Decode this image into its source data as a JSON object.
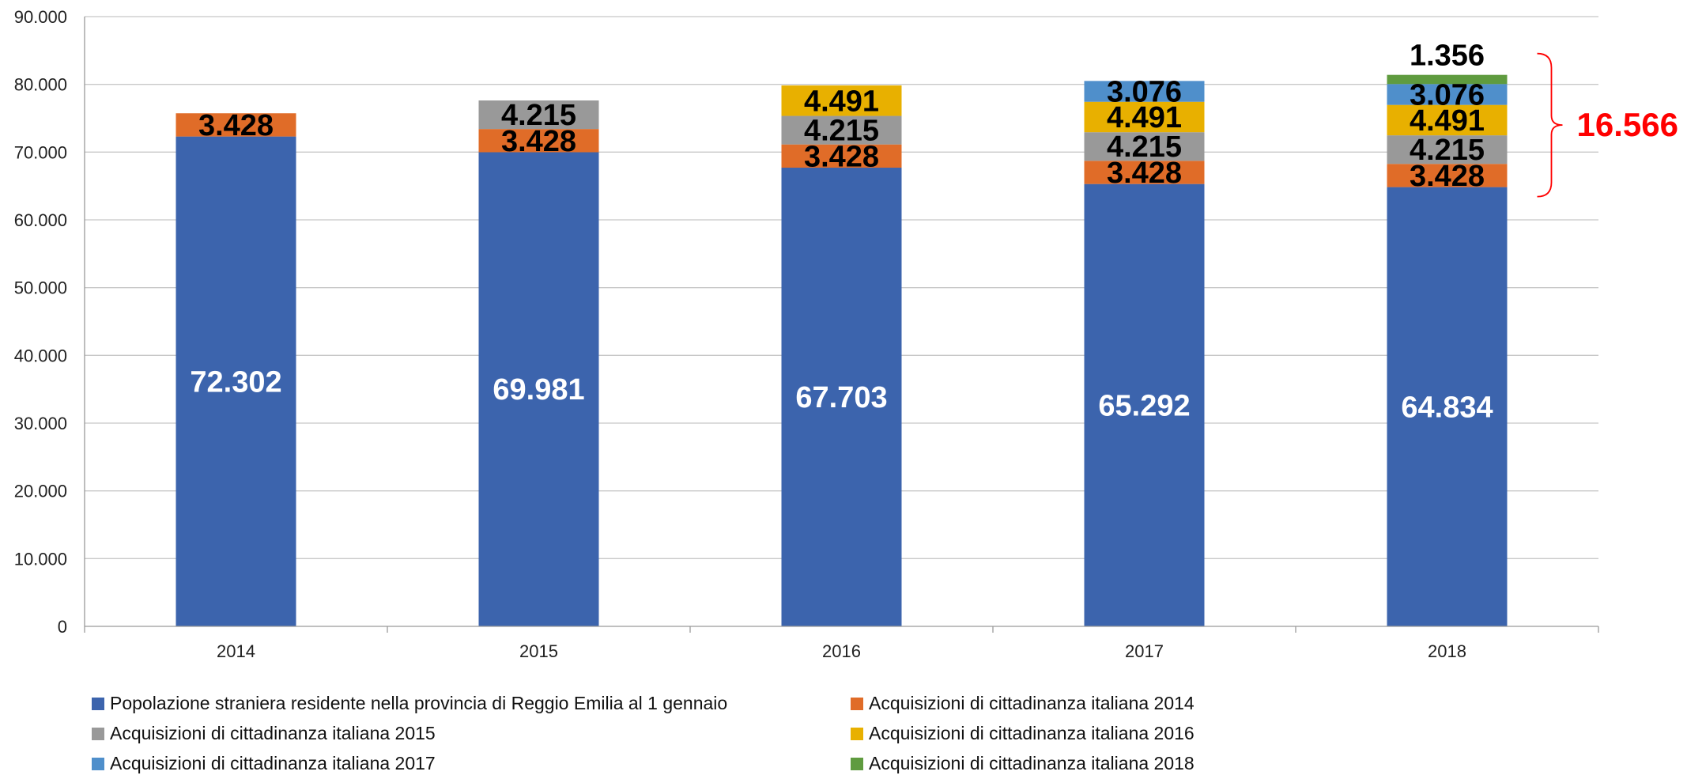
{
  "chart_data": {
    "type": "bar",
    "stacked": true,
    "categories": [
      "2014",
      "2015",
      "2016",
      "2017",
      "2018"
    ],
    "series": [
      {
        "name": "Popolazione straniera residente nella provincia di Reggio Emilia al 1 gennaio",
        "color": "#3c64ad",
        "values": [
          72302,
          69981,
          67703,
          65292,
          64834
        ],
        "labels": [
          "72.302",
          "69.981",
          "67.703",
          "65.292",
          "64.834"
        ]
      },
      {
        "name": "Acquisizioni di cittadinanza italiana 2014",
        "color": "#e06c28",
        "values": [
          3428,
          3428,
          3428,
          3428,
          3428
        ],
        "labels": [
          "3.428",
          "3.428",
          "3.428",
          "3.428",
          "3.428"
        ]
      },
      {
        "name": "Acquisizioni di cittadinanza italiana 2015",
        "color": "#999999",
        "values": [
          null,
          4215,
          4215,
          4215,
          4215
        ],
        "labels": [
          "",
          "4.215",
          "4.215",
          "4.215",
          "4.215"
        ]
      },
      {
        "name": "Acquisizioni di cittadinanza italiana 2016",
        "color": "#e8b000",
        "values": [
          null,
          null,
          4491,
          4491,
          4491
        ],
        "labels": [
          "",
          "",
          "4.491",
          "4.491",
          "4.491"
        ]
      },
      {
        "name": "Acquisizioni di cittadinanza italiana 2017",
        "color": "#4f8fcb",
        "values": [
          null,
          null,
          null,
          3076,
          3076
        ],
        "labels": [
          "",
          "",
          "",
          "3.076",
          "3.076"
        ]
      },
      {
        "name": "Acquisizioni di cittadinanza italiana 2018",
        "color": "#5f9b3f",
        "values": [
          null,
          null,
          null,
          null,
          1356
        ],
        "labels": [
          "",
          "",
          "",
          "",
          "1.356"
        ]
      }
    ],
    "ylim": [
      0,
      90000
    ],
    "yticks": [
      0,
      10000,
      20000,
      30000,
      40000,
      50000,
      60000,
      70000,
      80000,
      90000
    ],
    "ytick_labels": [
      "0",
      "10.000",
      "20.000",
      "30.000",
      "40.000",
      "50.000",
      "60.000",
      "70.000",
      "80.000",
      "90.000"
    ],
    "grid": true,
    "legend_position": "bottom",
    "annotation": {
      "text": "16.566",
      "color": "#ff0000",
      "category": "2018",
      "from": 64834,
      "to": 81400
    }
  }
}
